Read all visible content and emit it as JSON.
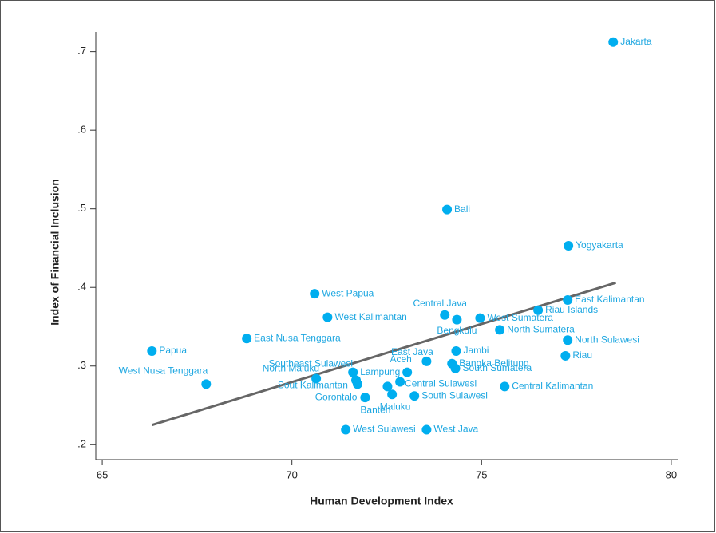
{
  "chart_data": {
    "type": "scatter",
    "x_label": "Human Development Index",
    "y_label": "Index of Financial Inclusion",
    "xlim": [
      64.83,
      80.17
    ],
    "ylim": [
      0.181,
      0.725
    ],
    "xticks": [
      65,
      70,
      75,
      80
    ],
    "yticks": [
      {
        "value": 0.2,
        "label": ".2"
      },
      {
        "value": 0.3,
        "label": ".3"
      },
      {
        "value": 0.4,
        "label": ".4"
      },
      {
        "value": 0.5,
        "label": ".5"
      },
      {
        "value": 0.6,
        "label": ".6"
      },
      {
        "value": 0.7,
        "label": ".7"
      }
    ],
    "color": "#00aeef",
    "trend_color": "#666666",
    "trend_line": {
      "x": [
        66.31,
        78.54
      ],
      "y": [
        0.225,
        0.406
      ]
    },
    "points": [
      {
        "label": "Jakarta",
        "x": 78.47,
        "y": 0.712
      },
      {
        "label": "Bali",
        "x": 74.09,
        "y": 0.499
      },
      {
        "label": "Yogyakarta",
        "x": 77.29,
        "y": 0.453
      },
      {
        "label": "West Papua",
        "x": 70.6,
        "y": 0.392
      },
      {
        "label": "East Kalimantan",
        "x": 77.27,
        "y": 0.384
      },
      {
        "label": "Riau Islands",
        "x": 76.49,
        "y": 0.371
      },
      {
        "label": "West Kalimantan",
        "x": 70.94,
        "y": 0.362
      },
      {
        "label": "Central Java",
        "x": 74.03,
        "y": 0.365
      },
      {
        "label": "Bengkulu",
        "x": 74.35,
        "y": 0.359
      },
      {
        "label": "West Sumatera",
        "x": 74.96,
        "y": 0.361
      },
      {
        "label": "North Sumatera",
        "x": 75.48,
        "y": 0.346
      },
      {
        "label": "East Nusa Tenggara",
        "x": 68.81,
        "y": 0.335
      },
      {
        "label": "North Sulawesi",
        "x": 77.27,
        "y": 0.333
      },
      {
        "label": "Papua",
        "x": 66.31,
        "y": 0.319
      },
      {
        "label": "Jambi",
        "x": 74.33,
        "y": 0.319
      },
      {
        "label": "Riau",
        "x": 77.21,
        "y": 0.313
      },
      {
        "label": "East Java",
        "x": 73.55,
        "y": 0.306
      },
      {
        "label": "Bangka Belitung",
        "x": 74.22,
        "y": 0.303
      },
      {
        "label": "South Sumatera",
        "x": 74.31,
        "y": 0.297
      },
      {
        "label": "Aceh",
        "x": 73.04,
        "y": 0.292
      },
      {
        "label": "Lampung",
        "x": 71.61,
        "y": 0.292
      },
      {
        "label": "Southeast Sulawesi",
        "x": 71.69,
        "y": 0.282
      },
      {
        "label": "Sout Kalimantan",
        "x": 71.73,
        "y": 0.277
      },
      {
        "label": "North Maluku",
        "x": 70.64,
        "y": 0.284
      },
      {
        "label": "West Nusa Tenggara",
        "x": 67.74,
        "y": 0.277
      },
      {
        "label": "Central Sulawesi",
        "x": 72.85,
        "y": 0.28
      },
      {
        "label": "Maluku",
        "x": 72.64,
        "y": 0.264
      },
      {
        "label": "Banten",
        "x": 72.52,
        "y": 0.274
      },
      {
        "label": "Gorontalo",
        "x": 71.93,
        "y": 0.26
      },
      {
        "label": "South Sulawesi",
        "x": 73.23,
        "y": 0.262
      },
      {
        "label": "Central Kalimantan",
        "x": 75.61,
        "y": 0.274
      },
      {
        "label": "West Sulawesi",
        "x": 71.42,
        "y": 0.219
      },
      {
        "label": "West Java",
        "x": 73.55,
        "y": 0.219
      }
    ]
  }
}
